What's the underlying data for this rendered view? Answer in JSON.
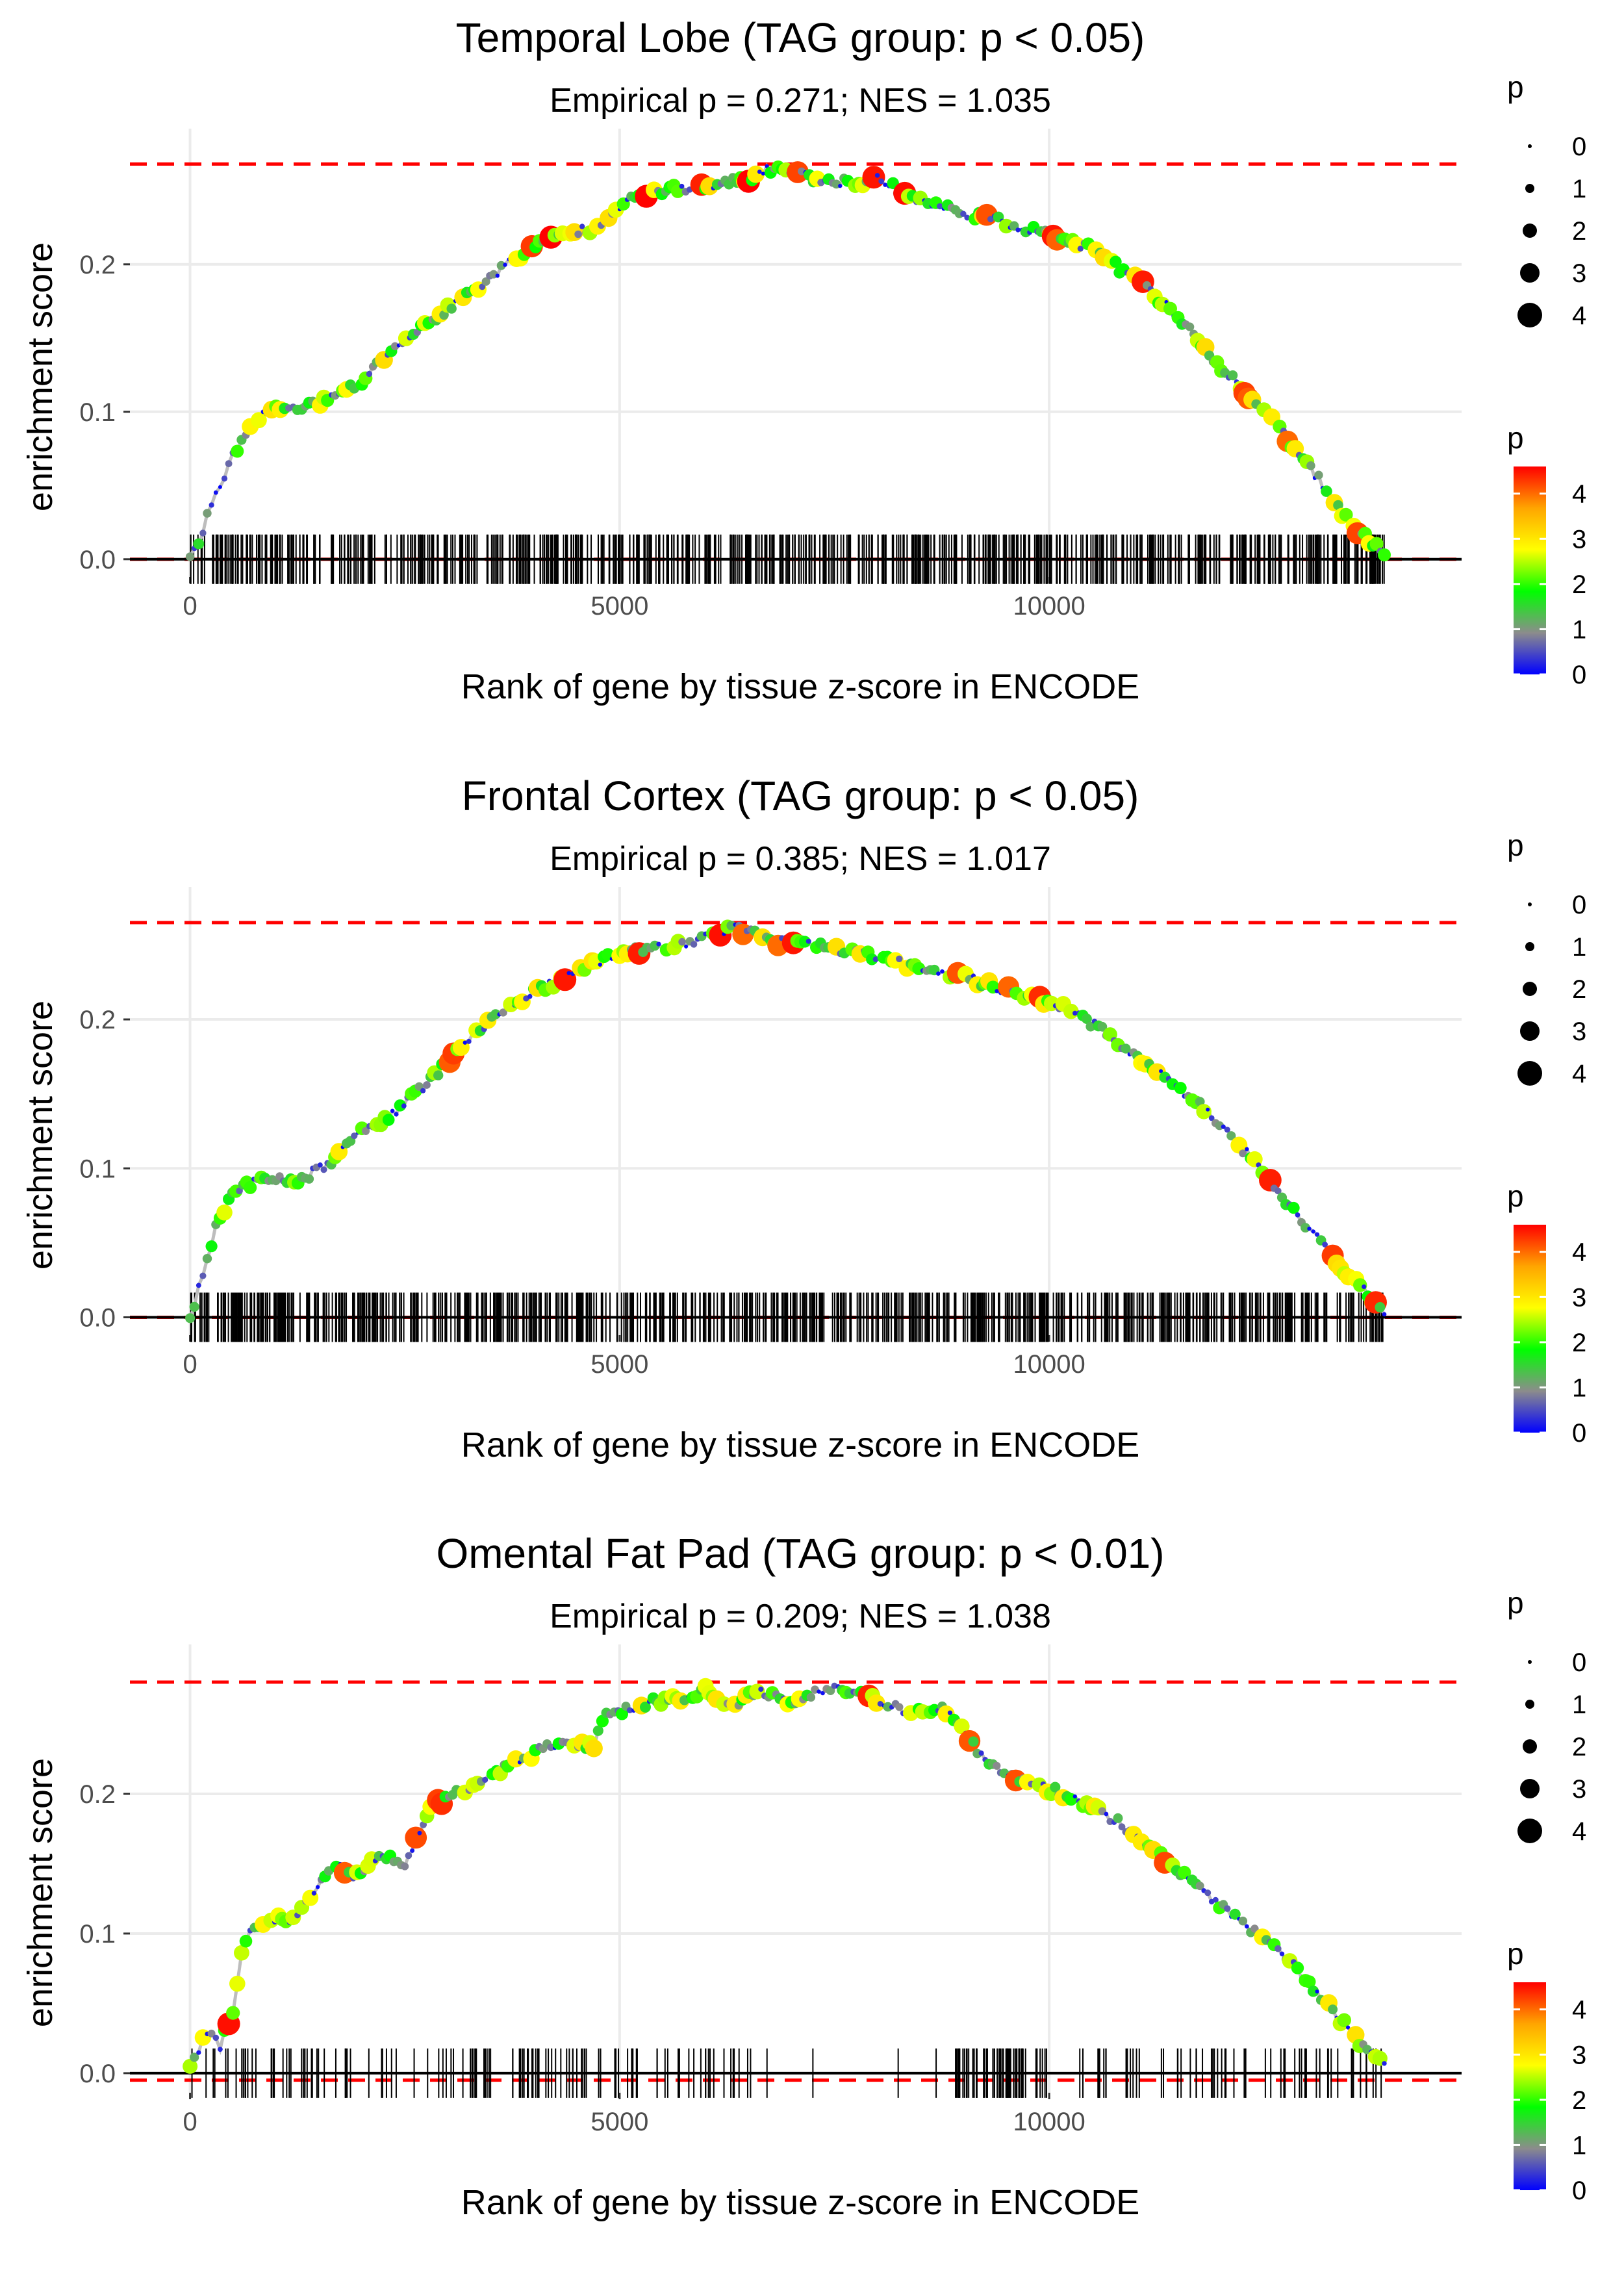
{
  "chart_data": [
    {
      "type": "scatter",
      "title": "Temporal Lobe (TAG group: p < 0.05)",
      "subtitle": "Empirical p = 0.271; NES = 1.035",
      "xlabel": "Rank of gene by tissue z-score in ENCODE",
      "ylabel": "enrichment score",
      "xlim": [
        -700,
        14800
      ],
      "ylim": [
        -0.012,
        0.292
      ],
      "xticks": [
        0,
        5000,
        10000
      ],
      "xtick_labels": [
        "0",
        "5000",
        "10000"
      ],
      "yticks": [
        0.0,
        0.1,
        0.2
      ],
      "ytick_labels": [
        "0.0",
        "0.1",
        "0.2"
      ],
      "max_es_line": 0.268,
      "min_es_line": 0.0,
      "n_hits": 700,
      "hit_range": [
        0,
        13900
      ],
      "hit_density": "uniform",
      "hit_seed": 11,
      "curve": [
        [
          0,
          0
        ],
        [
          150,
          0.02
        ],
        [
          300,
          0.045
        ],
        [
          500,
          0.07
        ],
        [
          700,
          0.09
        ],
        [
          900,
          0.1
        ],
        [
          1100,
          0.103
        ],
        [
          1300,
          0.103
        ],
        [
          1600,
          0.108
        ],
        [
          2000,
          0.12
        ],
        [
          2300,
          0.14
        ],
        [
          2600,
          0.153
        ],
        [
          3000,
          0.17
        ],
        [
          3400,
          0.187
        ],
        [
          3800,
          0.205
        ],
        [
          4200,
          0.218
        ],
        [
          4700,
          0.225
        ],
        [
          5000,
          0.24
        ],
        [
          5400,
          0.25
        ],
        [
          6000,
          0.252
        ],
        [
          6500,
          0.258
        ],
        [
          6800,
          0.266
        ],
        [
          7300,
          0.258
        ],
        [
          7700,
          0.255
        ],
        [
          8000,
          0.258
        ],
        [
          8500,
          0.243
        ],
        [
          9000,
          0.235
        ],
        [
          9500,
          0.228
        ],
        [
          10000,
          0.22
        ],
        [
          10500,
          0.21
        ],
        [
          11000,
          0.19
        ],
        [
          11500,
          0.165
        ],
        [
          12000,
          0.13
        ],
        [
          12500,
          0.1
        ],
        [
          13000,
          0.065
        ],
        [
          13500,
          0.025
        ],
        [
          13900,
          0.003
        ]
      ],
      "size_legend": {
        "title": "p",
        "labels": [
          "0",
          "1",
          "2",
          "3",
          "4"
        ]
      },
      "color_legend": {
        "title": "p",
        "labels": [
          "4",
          "3",
          "2",
          "1",
          "0"
        ],
        "colors": [
          "#0000ff",
          "#8c8c8c",
          "#00ff00",
          "#ffff00",
          "#ffa500",
          "#ff0000"
        ]
      }
    },
    {
      "type": "scatter",
      "title": "Frontal Cortex (TAG group: p < 0.05)",
      "subtitle": "Empirical p = 0.385; NES = 1.017",
      "xlabel": "Rank of gene by tissue z-score in ENCODE",
      "ylabel": "enrichment score",
      "xlim": [
        -700,
        14800
      ],
      "ylim": [
        -0.012,
        0.289
      ],
      "xticks": [
        0,
        5000,
        10000
      ],
      "xtick_labels": [
        "0",
        "5000",
        "10000"
      ],
      "yticks": [
        0.0,
        0.1,
        0.2
      ],
      "ytick_labels": [
        "0.0",
        "0.1",
        "0.2"
      ],
      "max_es_line": 0.265,
      "min_es_line": 0.0,
      "n_hits": 760,
      "hit_range": [
        0,
        13900
      ],
      "hit_density": "uniform",
      "hit_seed": 23,
      "curve": [
        [
          0,
          0
        ],
        [
          150,
          0.03
        ],
        [
          300,
          0.06
        ],
        [
          450,
          0.08
        ],
        [
          700,
          0.09
        ],
        [
          1000,
          0.093
        ],
        [
          1300,
          0.093
        ],
        [
          1600,
          0.103
        ],
        [
          2000,
          0.125
        ],
        [
          2400,
          0.138
        ],
        [
          2800,
          0.16
        ],
        [
          3200,
          0.183
        ],
        [
          3600,
          0.205
        ],
        [
          4000,
          0.218
        ],
        [
          4500,
          0.232
        ],
        [
          5000,
          0.245
        ],
        [
          5500,
          0.248
        ],
        [
          6000,
          0.255
        ],
        [
          6300,
          0.262
        ],
        [
          6800,
          0.253
        ],
        [
          7200,
          0.25
        ],
        [
          7800,
          0.245
        ],
        [
          8300,
          0.237
        ],
        [
          8800,
          0.232
        ],
        [
          9300,
          0.223
        ],
        [
          9800,
          0.215
        ],
        [
          10300,
          0.205
        ],
        [
          10800,
          0.185
        ],
        [
          11300,
          0.163
        ],
        [
          11800,
          0.14
        ],
        [
          12300,
          0.11
        ],
        [
          12800,
          0.075
        ],
        [
          13300,
          0.04
        ],
        [
          13800,
          0.01
        ],
        [
          13900,
          0.002
        ]
      ],
      "size_legend": {
        "title": "p",
        "labels": [
          "0",
          "1",
          "2",
          "3",
          "4"
        ]
      },
      "color_legend": {
        "title": "p",
        "labels": [
          "4",
          "3",
          "2",
          "1",
          "0"
        ],
        "colors": [
          "#0000ff",
          "#8c8c8c",
          "#00ff00",
          "#ffff00",
          "#ffa500",
          "#ff0000"
        ]
      }
    },
    {
      "type": "scatter",
      "title": "Omental Fat Pad (TAG group: p < 0.01)",
      "subtitle": "Empirical p = 0.209; NES = 1.038",
      "xlabel": "Rank of gene by tissue z-score in ENCODE",
      "ylabel": "enrichment score",
      "xlim": [
        -700,
        14800
      ],
      "ylim": [
        -0.014,
        0.307
      ],
      "xticks": [
        0,
        5000,
        10000
      ],
      "xtick_labels": [
        "0",
        "5000",
        "10000"
      ],
      "yticks": [
        0.0,
        0.1,
        0.2
      ],
      "ytick_labels": [
        "0.0",
        "0.1",
        "0.2"
      ],
      "max_es_line": 0.28,
      "min_es_line": -0.005,
      "n_hits": 260,
      "hit_range": [
        0,
        13900
      ],
      "hit_density": "sparse",
      "hit_seed": 37,
      "curve": [
        [
          0,
          0.003
        ],
        [
          200,
          0.03
        ],
        [
          350,
          0.02
        ],
        [
          500,
          0.045
        ],
        [
          600,
          0.085
        ],
        [
          700,
          0.1
        ],
        [
          900,
          0.11
        ],
        [
          1200,
          0.11
        ],
        [
          1400,
          0.125
        ],
        [
          1700,
          0.15
        ],
        [
          1900,
          0.14
        ],
        [
          2200,
          0.155
        ],
        [
          2500,
          0.15
        ],
        [
          2800,
          0.19
        ],
        [
          3100,
          0.2
        ],
        [
          3300,
          0.205
        ],
        [
          3700,
          0.22
        ],
        [
          4200,
          0.235
        ],
        [
          4700,
          0.235
        ],
        [
          4800,
          0.255
        ],
        [
          5300,
          0.265
        ],
        [
          5800,
          0.27
        ],
        [
          6000,
          0.275
        ],
        [
          6300,
          0.26
        ],
        [
          6600,
          0.275
        ],
        [
          7000,
          0.265
        ],
        [
          7500,
          0.278
        ],
        [
          7900,
          0.27
        ],
        [
          8300,
          0.26
        ],
        [
          8800,
          0.26
        ],
        [
          9300,
          0.22
        ],
        [
          9700,
          0.21
        ],
        [
          10300,
          0.197
        ],
        [
          10800,
          0.18
        ],
        [
          11300,
          0.155
        ],
        [
          11800,
          0.13
        ],
        [
          12300,
          0.105
        ],
        [
          12800,
          0.08
        ],
        [
          13300,
          0.045
        ],
        [
          13700,
          0.015
        ],
        [
          13900,
          0.007
        ]
      ],
      "size_legend": {
        "title": "p",
        "labels": [
          "0",
          "1",
          "2",
          "3",
          "4"
        ]
      },
      "color_legend": {
        "title": "p",
        "labels": [
          "4",
          "3",
          "2",
          "1",
          "0"
        ],
        "colors": [
          "#0000ff",
          "#8c8c8c",
          "#00ff00",
          "#ffff00",
          "#ffa500",
          "#ff0000"
        ]
      }
    }
  ]
}
